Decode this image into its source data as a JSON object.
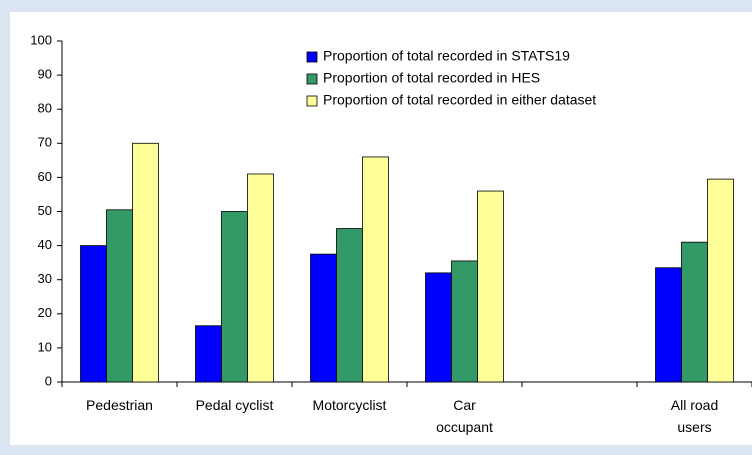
{
  "chart_data": {
    "type": "bar",
    "categories": [
      "Pedestrian",
      "Pedal cyclist",
      "Motorcyclist",
      "Car occupant",
      null,
      "All road users"
    ],
    "series": [
      {
        "name": "Proportion of total recorded in STATS19",
        "color": "#0000ff",
        "values": [
          40,
          16.5,
          37.5,
          32,
          null,
          33.5
        ]
      },
      {
        "name": "Proportion of total recorded in HES",
        "color": "#339966",
        "values": [
          50.5,
          50,
          45,
          35.5,
          null,
          41
        ]
      },
      {
        "name": "Proportion of total recorded in either dataset",
        "color": "#ffff99",
        "values": [
          70,
          61,
          66,
          56,
          null,
          59.5
        ]
      }
    ],
    "ylim": [
      0,
      100
    ],
    "yticks": [
      0,
      10,
      20,
      30,
      40,
      50,
      60,
      70,
      80,
      90,
      100
    ],
    "grid": false,
    "legend": "top-right"
  }
}
